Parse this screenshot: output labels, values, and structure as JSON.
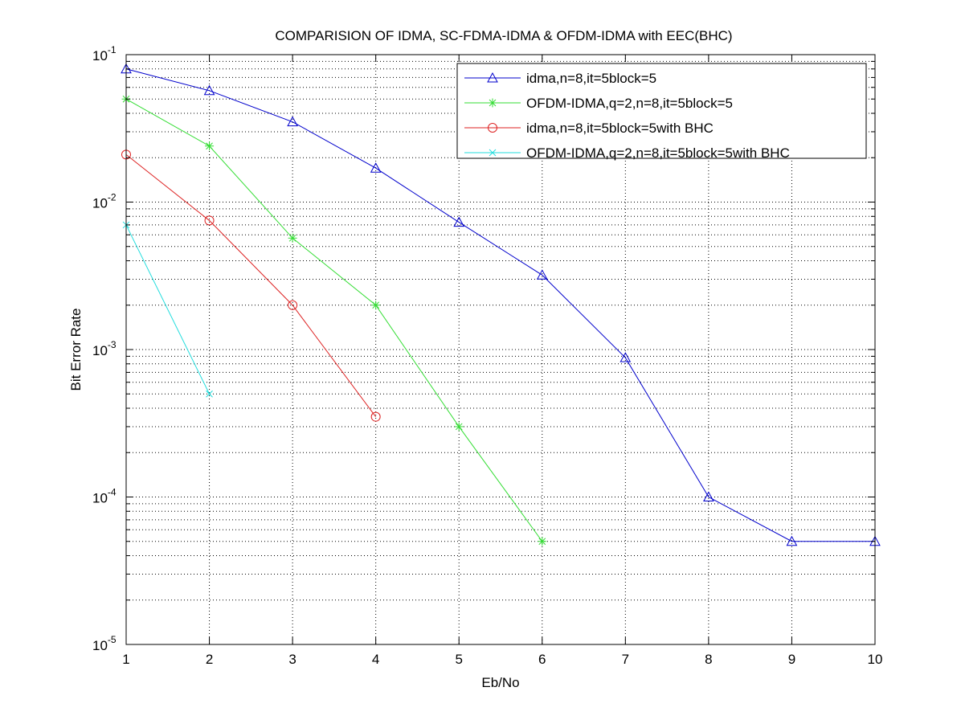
{
  "chart_data": {
    "type": "line",
    "title": "COMPARISION OF IDMA, SC-FDMA-IDMA & OFDM-IDMA with EEC(BHC)",
    "xlabel": "Eb/No",
    "ylabel": "Bit Error Rate",
    "xlim": [
      1,
      10
    ],
    "ylim": [
      1e-05,
      0.1
    ],
    "yscale": "log",
    "grid": true,
    "legend_position": "top-right",
    "x_ticks": [
      "1",
      "2",
      "3",
      "4",
      "5",
      "6",
      "7",
      "8",
      "9",
      "10"
    ],
    "y_ticks": [
      {
        "base": "10",
        "exp": "-1",
        "value": 0.1
      },
      {
        "base": "10",
        "exp": "-2",
        "value": 0.01
      },
      {
        "base": "10",
        "exp": "-3",
        "value": 0.001
      },
      {
        "base": "10",
        "exp": "-4",
        "value": 0.0001
      },
      {
        "base": "10",
        "exp": "-5",
        "value": 1e-05
      }
    ],
    "series": [
      {
        "name": "idma,n=8,it=5block=5",
        "color": "#0000cc",
        "marker": "triangle",
        "x": [
          1,
          2,
          3,
          4,
          5,
          6,
          7,
          8,
          9,
          10
        ],
        "y": [
          0.08,
          0.057,
          0.035,
          0.017,
          0.0073,
          0.0032,
          0.00088,
          0.0001,
          5e-05,
          5e-05
        ]
      },
      {
        "name": "OFDM-IDMA,q=2,n=8,it=5block=5",
        "color": "#33dd33",
        "marker": "star",
        "x": [
          1,
          2,
          3,
          4,
          5,
          6
        ],
        "y": [
          0.05,
          0.024,
          0.0057,
          0.002,
          0.0003,
          5e-05
        ]
      },
      {
        "name": "idma,n=8,it=5block=5with BHC",
        "color": "#dd2222",
        "marker": "circle",
        "x": [
          1,
          2,
          3,
          4
        ],
        "y": [
          0.021,
          0.0075,
          0.002,
          0.00035
        ]
      },
      {
        "name": "OFDM-IDMA,q=2,n=8,it=5block=5with BHC",
        "color": "#22dddd",
        "marker": "x",
        "x": [
          1,
          2
        ],
        "y": [
          0.007,
          0.0005
        ]
      }
    ]
  }
}
